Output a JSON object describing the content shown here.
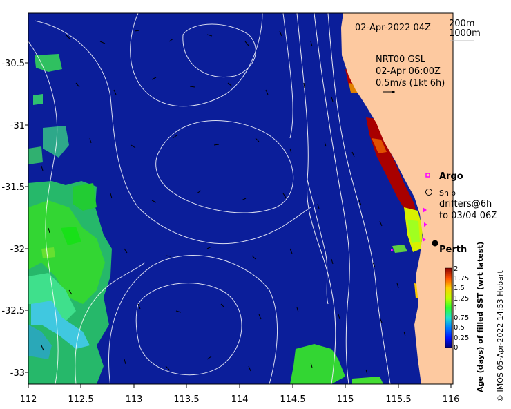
{
  "map": {
    "header_date": "02-Apr-2022 04Z",
    "contour_legend": [
      "200m",
      "1000m"
    ],
    "currents_source": "NRT00 GSL",
    "currents_time": "02-Apr 06:00Z",
    "currents_scale": "0.5m/s (1kt 6h)",
    "argo_label": "Argo",
    "ship_label": "Ship",
    "drifters_line1": "drifters@6h",
    "drifters_line2": "to 03/04 06Z",
    "city_label": "Perth",
    "x_ticks": [
      "112",
      "112.5",
      "113",
      "113.5",
      "114",
      "114.5",
      "115",
      "115.5",
      "116"
    ],
    "y_ticks": [
      "-30.5",
      "-31",
      "-31.5",
      "-32",
      "-32.5",
      "-33"
    ],
    "colorbar_title": "Age (days) of filled SST (wrt latest)",
    "colorbar_ticks": [
      "2",
      "1.75",
      "1.5",
      "1.25",
      "1",
      "0.75",
      "0.5",
      "0.25",
      "0"
    ],
    "credit": "© IMOS 05-Apr-2022 14:53 Hobart",
    "colors": {
      "ocean": "#0b1e9a",
      "land": "#fdc9a0",
      "age_high": "#b00000",
      "age_mid": "#22cc22",
      "age_low": "#2fb09a"
    }
  }
}
